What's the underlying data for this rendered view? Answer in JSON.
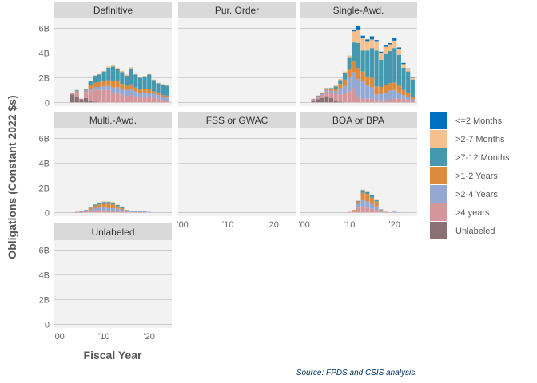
{
  "chart_data": {
    "type": "bar",
    "stacked": true,
    "xlabel": "Fiscal Year",
    "ylabel": "Obligations (Constant 2022 $s)",
    "caption": "Source: FPDS and CSIS analysis.",
    "x_ticks": [
      {
        "value": 2000,
        "label": "'00"
      },
      {
        "value": 2010,
        "label": "'10"
      },
      {
        "value": 2020,
        "label": "'20"
      }
    ],
    "xlim": [
      1999,
      2025
    ],
    "y_ticks": [
      {
        "value": 0,
        "label": "0"
      },
      {
        "value": 2,
        "label": "2B"
      },
      {
        "value": 4,
        "label": "4B"
      },
      {
        "value": 6,
        "label": "6B"
      }
    ],
    "ylim": [
      -0.3,
      6.8
    ],
    "legend_position": "right",
    "series": [
      {
        "name": "<=2 Months",
        "color": "#0070C0"
      },
      {
        "name": ">2-7 Months",
        "color": "#F5C08C"
      },
      {
        "name": ">7-12 Months",
        "color": "#4499B0"
      },
      {
        "name": ">1-2 Years",
        "color": "#DC8A3C"
      },
      {
        "name": ">2-4 Years",
        "color": "#94A8D4"
      },
      {
        "name": ">4 years",
        "color": "#D4959B"
      },
      {
        "name": "Unlabeled",
        "color": "#8A6F73"
      }
    ],
    "facets": [
      {
        "title": "Definitive",
        "years": [
          2000,
          2001,
          2002,
          2003,
          2004,
          2005,
          2006,
          2007,
          2008,
          2009,
          2010,
          2011,
          2012,
          2013,
          2014,
          2015,
          2016,
          2017,
          2018,
          2019,
          2020,
          2021,
          2022,
          2023,
          2024
        ],
        "values": [
          [
            0,
            0,
            0,
            0,
            0,
            0,
            0
          ],
          [
            0,
            0,
            0,
            0,
            0,
            0,
            0
          ],
          [
            0,
            0,
            0,
            0,
            0,
            0,
            0
          ],
          [
            0,
            0,
            0,
            0,
            0,
            0.15,
            0.65
          ],
          [
            0,
            0,
            0.05,
            0.05,
            0.05,
            0.4,
            0.45
          ],
          [
            0,
            0,
            0,
            0,
            0,
            0.05,
            0.25
          ],
          [
            0,
            0,
            0.05,
            0.05,
            0.1,
            0.5,
            0.35
          ],
          [
            0,
            0.05,
            0.3,
            0.3,
            0.15,
            0.85,
            0.1
          ],
          [
            0,
            0.05,
            0.55,
            0.35,
            0.2,
            1.0,
            0.05
          ],
          [
            0,
            0.05,
            0.6,
            0.4,
            0.25,
            1.0,
            0
          ],
          [
            0,
            0.05,
            0.8,
            0.4,
            0.3,
            1.0,
            0
          ],
          [
            0,
            0.1,
            1.0,
            0.45,
            0.35,
            1.0,
            0
          ],
          [
            0,
            0.1,
            1.2,
            0.5,
            0.4,
            0.8,
            0
          ],
          [
            0,
            0.1,
            1.0,
            0.45,
            0.45,
            0.8,
            0
          ],
          [
            0,
            0.1,
            0.95,
            0.4,
            0.45,
            0.65,
            0
          ],
          [
            0,
            0.1,
            0.8,
            0.35,
            0.5,
            0.5,
            0
          ],
          [
            0,
            0.1,
            1.3,
            0.4,
            0.45,
            0.6,
            0
          ],
          [
            0,
            0.05,
            1.05,
            0.3,
            0.4,
            0.5,
            0
          ],
          [
            0,
            0.05,
            0.95,
            0.3,
            0.35,
            0.4,
            0
          ],
          [
            0,
            0.05,
            1.05,
            0.3,
            0.3,
            0.45,
            0
          ],
          [
            0,
            0.05,
            1.15,
            0.3,
            0.35,
            0.45,
            0
          ],
          [
            0,
            0.05,
            0.9,
            0.2,
            0.3,
            0.4,
            0
          ],
          [
            0,
            0.05,
            0.75,
            0.2,
            0.3,
            0.3,
            0
          ],
          [
            0,
            0.05,
            0.85,
            0.15,
            0.25,
            0.2,
            0
          ],
          [
            0,
            0.05,
            0.8,
            0.15,
            0.25,
            0.15,
            0
          ]
        ]
      },
      {
        "title": "Pur. Order",
        "years": [],
        "values": []
      },
      {
        "title": "Single-Awd.",
        "years": [
          2000,
          2001,
          2002,
          2003,
          2004,
          2005,
          2006,
          2007,
          2008,
          2009,
          2010,
          2011,
          2012,
          2013,
          2014,
          2015,
          2016,
          2017,
          2018,
          2019,
          2020,
          2021,
          2022,
          2023,
          2024
        ],
        "values": [
          [
            0,
            0,
            0,
            0,
            0,
            0,
            0
          ],
          [
            0,
            0,
            0,
            0,
            0,
            0,
            0
          ],
          [
            0,
            0,
            0,
            0,
            0.05,
            0.1,
            0.15
          ],
          [
            0,
            0,
            0.05,
            0.05,
            0.05,
            0.15,
            0.25
          ],
          [
            0,
            0,
            0.05,
            0.05,
            0.1,
            0.25,
            0.35
          ],
          [
            0,
            0,
            0.05,
            0.1,
            0.1,
            0.4,
            0.5
          ],
          [
            0,
            0.05,
            0.1,
            0.1,
            0.15,
            0.45,
            0.35
          ],
          [
            0,
            0.1,
            0.2,
            0.2,
            0.2,
            0.6,
            0.1
          ],
          [
            0,
            0.1,
            0.3,
            0.35,
            0.5,
            0.6,
            0.05
          ],
          [
            0,
            0.15,
            0.5,
            0.5,
            0.6,
            0.75,
            0
          ],
          [
            0,
            0.2,
            0.9,
            0.7,
            1.1,
            0.9,
            0
          ],
          [
            0.15,
            0.9,
            1.5,
            0.9,
            1.3,
            1.15,
            0
          ],
          [
            0.3,
            1.1,
            2.0,
            0.9,
            1.5,
            0.4,
            0
          ],
          [
            0.2,
            1.0,
            1.7,
            0.8,
            1.4,
            0.3,
            0
          ],
          [
            0.2,
            0.7,
            2.1,
            0.7,
            1.1,
            0.3,
            0
          ],
          [
            0.25,
            0.7,
            2.4,
            0.75,
            0.95,
            0.3,
            0
          ],
          [
            0.15,
            0.7,
            2.9,
            0.65,
            0.45,
            0.2,
            0
          ],
          [
            0.1,
            0.55,
            2.2,
            0.55,
            0.5,
            0.2,
            0
          ],
          [
            0.1,
            0.6,
            2.5,
            0.6,
            0.6,
            0.2,
            0
          ],
          [
            0.1,
            0.55,
            2.6,
            0.6,
            0.7,
            0.25,
            0
          ],
          [
            0.2,
            0.6,
            2.8,
            0.6,
            0.7,
            0.3,
            0
          ],
          [
            0.1,
            0.5,
            2.5,
            0.55,
            0.5,
            0.3,
            0
          ],
          [
            0.1,
            0.3,
            1.8,
            0.4,
            0.3,
            0.3,
            0
          ],
          [
            0.05,
            0.2,
            1.7,
            0.35,
            0.25,
            0.2,
            0
          ],
          [
            0.05,
            0.15,
            1.4,
            0.2,
            0.15,
            0.1,
            0
          ]
        ]
      },
      {
        "title": "Multi.-Awd.",
        "years": [
          2000,
          2001,
          2002,
          2003,
          2004,
          2005,
          2006,
          2007,
          2008,
          2009,
          2010,
          2011,
          2012,
          2013,
          2014,
          2015,
          2016,
          2017,
          2018,
          2019,
          2020
        ],
        "values": [
          [
            0,
            0,
            0,
            0,
            0,
            0,
            0
          ],
          [
            0,
            0,
            0,
            0,
            0,
            0,
            0
          ],
          [
            0,
            0,
            0,
            0,
            0,
            0,
            0
          ],
          [
            0,
            0,
            0,
            0,
            0,
            0,
            0
          ],
          [
            0,
            0,
            0,
            0,
            0,
            0.02,
            0.03
          ],
          [
            0,
            0,
            0,
            0,
            0.02,
            0.03,
            0.05
          ],
          [
            0,
            0,
            0.02,
            0.03,
            0.05,
            0.1,
            0
          ],
          [
            0,
            0.02,
            0.05,
            0.1,
            0.1,
            0.15,
            0
          ],
          [
            0,
            0.02,
            0.1,
            0.2,
            0.15,
            0.2,
            0
          ],
          [
            0,
            0.05,
            0.12,
            0.25,
            0.2,
            0.2,
            0
          ],
          [
            0,
            0.05,
            0.15,
            0.3,
            0.2,
            0.2,
            0
          ],
          [
            0,
            0.05,
            0.15,
            0.35,
            0.2,
            0.15,
            0
          ],
          [
            0,
            0.05,
            0.15,
            0.3,
            0.2,
            0.15,
            0
          ],
          [
            0,
            0.05,
            0.1,
            0.2,
            0.15,
            0.15,
            0
          ],
          [
            0,
            0.05,
            0.1,
            0.1,
            0.15,
            0.1,
            0
          ],
          [
            0,
            0,
            0,
            0.05,
            0.1,
            0.05,
            0
          ],
          [
            0,
            0,
            0,
            0,
            0.1,
            0.03,
            0
          ],
          [
            0,
            0,
            0,
            0,
            0.1,
            0.02,
            0
          ],
          [
            0,
            0,
            0,
            0,
            0.1,
            0.02,
            0
          ],
          [
            0,
            0,
            0,
            0,
            0.08,
            0.02,
            0
          ],
          [
            0,
            0,
            0,
            0,
            0.05,
            0,
            0
          ]
        ]
      },
      {
        "title": "FSS or GWAC",
        "years": [],
        "values": []
      },
      {
        "title": "BOA or BPA",
        "years": [
          2010,
          2011,
          2012,
          2013,
          2014,
          2015,
          2016,
          2017,
          2018,
          2019,
          2020,
          2021
        ],
        "values": [
          [
            0,
            0,
            0,
            0,
            0,
            0.05,
            0
          ],
          [
            0,
            0,
            0,
            0.05,
            0.05,
            0.1,
            0
          ],
          [
            0,
            0.02,
            0.05,
            0.2,
            0.3,
            0.4,
            0
          ],
          [
            0,
            0.05,
            0.2,
            0.6,
            0.5,
            0.5,
            0
          ],
          [
            0,
            0.05,
            0.2,
            0.6,
            0.5,
            0.4,
            0
          ],
          [
            0,
            0.05,
            0.2,
            0.5,
            0.4,
            0.3,
            0
          ],
          [
            0,
            0.02,
            0.1,
            0.4,
            0.3,
            0.2,
            0
          ],
          [
            0,
            0,
            0.05,
            0.1,
            0.05,
            0.05,
            0
          ],
          [
            0,
            0,
            0,
            0.02,
            0.02,
            0.02,
            0
          ],
          [
            0,
            0,
            0,
            0,
            0.02,
            0,
            0
          ],
          [
            0,
            0,
            0,
            0,
            0.05,
            0.02,
            0
          ],
          [
            0,
            0,
            0,
            0,
            0.02,
            0,
            0
          ]
        ]
      },
      {
        "title": "Unlabeled",
        "years": [],
        "values": []
      }
    ]
  }
}
